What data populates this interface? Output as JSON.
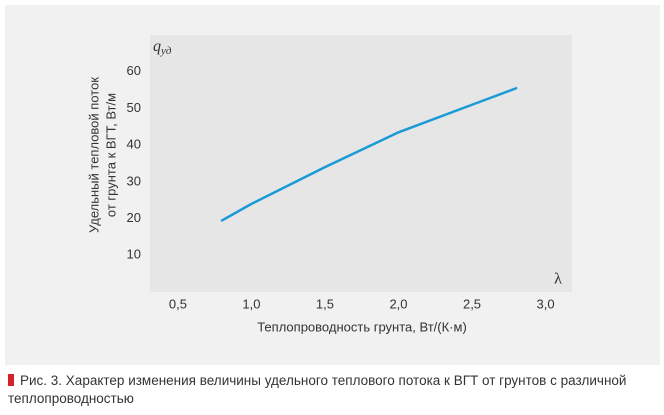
{
  "chart_data": {
    "type": "line",
    "y_label_lines": [
      "Удельный тепловой поток",
      "от грунта к ВГТ, Вт/м"
    ],
    "x_label": "Теплопроводность грунта, Вт/(К·м)",
    "y_symbol": "q",
    "y_symbol_sub": "уд",
    "x_symbol": "λ",
    "x": [
      0.8,
      1.0,
      1.5,
      2.0,
      2.5,
      2.8
    ],
    "series": [
      {
        "color": "#1a9ad6",
        "values": [
          19.5,
          24,
          34,
          43.5,
          51,
          55.5
        ]
      }
    ],
    "xlim": [
      0.31,
      3.18
    ],
    "xticks": [
      {
        "value": 0.5,
        "label": "0,5"
      },
      {
        "value": 1.0,
        "label": "1,0"
      },
      {
        "value": 1.5,
        "label": "1,5"
      },
      {
        "value": 2.0,
        "label": "2,0"
      },
      {
        "value": 2.5,
        "label": "2,5"
      },
      {
        "value": 3.0,
        "label": "3,0"
      }
    ],
    "ylim": [
      0,
      70
    ],
    "yticks": [
      10,
      20,
      30,
      40,
      50,
      60
    ],
    "grid": false
  },
  "caption": "Рис. 3. Характер изменения величины удельного теплового потока к ВГТ от грунтов с различной теплопроводностью"
}
